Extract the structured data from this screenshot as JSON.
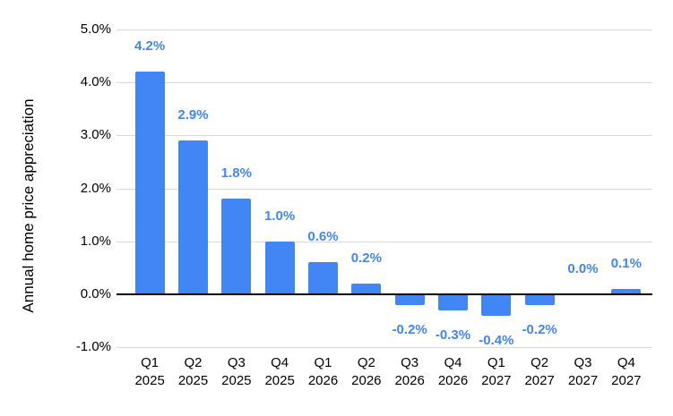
{
  "chart_data": {
    "type": "bar",
    "title": "",
    "xlabel": "",
    "ylabel": "Annual home price appreciation",
    "categories": [
      "Q1 2025",
      "Q2 2025",
      "Q3 2025",
      "Q4 2025",
      "Q1 2026",
      "Q2 2026",
      "Q3 2026",
      "Q4 2026",
      "Q1 2027",
      "Q2 2027",
      "Q3 2027",
      "Q4 2027"
    ],
    "values": [
      4.2,
      2.9,
      1.8,
      1.0,
      0.6,
      0.2,
      -0.2,
      -0.3,
      -0.4,
      -0.2,
      0.0,
      0.1
    ],
    "data_labels": [
      "4.2%",
      "2.9%",
      "1.8%",
      "1.0%",
      "0.6%",
      "0.2%",
      "-0.2%",
      "-0.3%",
      "-0.4%",
      "-0.2%",
      "0.0%",
      "0.1%"
    ],
    "y_ticks": [
      {
        "label": "5.0%",
        "value": 5
      },
      {
        "label": "4.0%",
        "value": 4
      },
      {
        "label": "3.0%",
        "value": 3
      },
      {
        "label": "2.0%",
        "value": 2
      },
      {
        "label": "1.0%",
        "value": 1
      },
      {
        "label": "0.0%",
        "value": 0
      },
      {
        "label": "-1.0%",
        "value": -1
      }
    ],
    "ylim": [
      -1,
      5
    ],
    "grid": true,
    "legend_position": "none",
    "colors": {
      "bar": "#4285F4",
      "data_label": "#4285F4",
      "gridline": "#D9D9D9",
      "zero_line": "#000000",
      "axis_text": "#000000",
      "background": "#FFFFFF"
    }
  }
}
